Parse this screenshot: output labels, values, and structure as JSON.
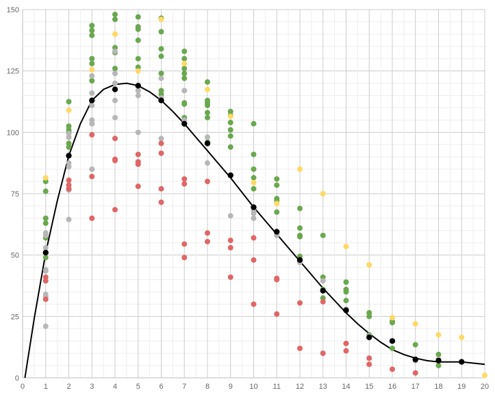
{
  "chart_data": {
    "type": "scatter",
    "title": "",
    "xlabel": "",
    "ylabel": "",
    "xlim": [
      0,
      20
    ],
    "ylim": [
      0,
      150
    ],
    "x_ticks": [
      0,
      1,
      2,
      3,
      4,
      5,
      6,
      7,
      8,
      9,
      10,
      11,
      12,
      13,
      14,
      15,
      16,
      17,
      18,
      19,
      20
    ],
    "y_ticks": [
      0,
      25,
      50,
      75,
      100,
      125,
      150
    ],
    "x_tick_labels": [
      "0",
      "1",
      "2",
      "3",
      "4",
      "5",
      "6",
      "7",
      "8",
      "9",
      "10",
      "11",
      "12",
      "13",
      "14",
      "15",
      "16",
      "17",
      "18",
      "19",
      "20"
    ],
    "y_tick_labels": [
      "0",
      "25",
      "50",
      "75",
      "100",
      "125",
      "150"
    ],
    "grid": true,
    "legend": "none",
    "series": [
      {
        "color": "#6aa84f",
        "points": [
          [
            1,
            80
          ],
          [
            1,
            76
          ],
          [
            1,
            65
          ],
          [
            1,
            63
          ],
          [
            1,
            57
          ],
          [
            1,
            49
          ],
          [
            2,
            112.5
          ],
          [
            2,
            102.5
          ],
          [
            2,
            101
          ],
          [
            2,
            100
          ],
          [
            2,
            95.5
          ],
          [
            2,
            94
          ],
          [
            3,
            143.5
          ],
          [
            3,
            141.5
          ],
          [
            3,
            139.5
          ],
          [
            3,
            130
          ],
          [
            3,
            128
          ],
          [
            3,
            121
          ],
          [
            4,
            148
          ],
          [
            4,
            146
          ],
          [
            4,
            134.5
          ],
          [
            4,
            132.5
          ],
          [
            4,
            126
          ],
          [
            5,
            147
          ],
          [
            5,
            143
          ],
          [
            5,
            142
          ],
          [
            5,
            137.5
          ],
          [
            5,
            130
          ],
          [
            5,
            126.5
          ],
          [
            6,
            146.5
          ],
          [
            6,
            141
          ],
          [
            6,
            134
          ],
          [
            6,
            131
          ],
          [
            6,
            124
          ],
          [
            6,
            117
          ],
          [
            6,
            115.5
          ],
          [
            7,
            133
          ],
          [
            7,
            130
          ],
          [
            7,
            126
          ],
          [
            7,
            124
          ],
          [
            7,
            122
          ],
          [
            7,
            112
          ],
          [
            7,
            111.5
          ],
          [
            7,
            106
          ],
          [
            8,
            120.5
          ],
          [
            8,
            113
          ],
          [
            8,
            112
          ],
          [
            8,
            111
          ],
          [
            8,
            108
          ],
          [
            8,
            106
          ],
          [
            8,
            96
          ],
          [
            9,
            108.5
          ],
          [
            9,
            107
          ],
          [
            9,
            104
          ],
          [
            9,
            101
          ],
          [
            9,
            98.5
          ],
          [
            9,
            94
          ],
          [
            10,
            103.5
          ],
          [
            10,
            91
          ],
          [
            10,
            85
          ],
          [
            10,
            81.5
          ],
          [
            10,
            77
          ],
          [
            11,
            81
          ],
          [
            11,
            78.5
          ],
          [
            11,
            73
          ],
          [
            11,
            72
          ],
          [
            11,
            67.5
          ],
          [
            12,
            69
          ],
          [
            12,
            61
          ],
          [
            12,
            58
          ],
          [
            12,
            57.5
          ],
          [
            12,
            49.5
          ],
          [
            13,
            58
          ],
          [
            13,
            41
          ],
          [
            13,
            36
          ],
          [
            13,
            32.5
          ],
          [
            14,
            39
          ],
          [
            14,
            36
          ],
          [
            14,
            35
          ],
          [
            14,
            31.5
          ],
          [
            15,
            26.5
          ],
          [
            15,
            25
          ],
          [
            15,
            17.5
          ],
          [
            16,
            23
          ],
          [
            16,
            22.5
          ],
          [
            16,
            12
          ],
          [
            17,
            13.5
          ],
          [
            18,
            9.5
          ],
          [
            18,
            5
          ]
        ]
      },
      {
        "color": "#ffd966",
        "points": [
          [
            1,
            81.5
          ],
          [
            2,
            109
          ],
          [
            3,
            125.5
          ],
          [
            4,
            140
          ],
          [
            5,
            125
          ],
          [
            6,
            146
          ],
          [
            7,
            128
          ],
          [
            8,
            117.5
          ],
          [
            9,
            106.5
          ],
          [
            10,
            79.5
          ],
          [
            11,
            71
          ],
          [
            12,
            85
          ],
          [
            13,
            75
          ],
          [
            14,
            53.5
          ],
          [
            15,
            46
          ],
          [
            16,
            24.5
          ],
          [
            17,
            22
          ],
          [
            18,
            17.5
          ],
          [
            19,
            16.5
          ],
          [
            20,
            1
          ]
        ]
      },
      {
        "color": "#b7b7b7",
        "points": [
          [
            1,
            59
          ],
          [
            1,
            58
          ],
          [
            1,
            53
          ],
          [
            1,
            44
          ],
          [
            1,
            43.5
          ],
          [
            1,
            34
          ],
          [
            1,
            33
          ],
          [
            1,
            21
          ],
          [
            2,
            99.5
          ],
          [
            2,
            98
          ],
          [
            2,
            87.5
          ],
          [
            2,
            86
          ],
          [
            2,
            77
          ],
          [
            2,
            76.5
          ],
          [
            2,
            64.5
          ],
          [
            3,
            123
          ],
          [
            3,
            116
          ],
          [
            3,
            111
          ],
          [
            3,
            105
          ],
          [
            3,
            103.5
          ],
          [
            3,
            85
          ],
          [
            4,
            133
          ],
          [
            4,
            124
          ],
          [
            4,
            120
          ],
          [
            4,
            113
          ],
          [
            4,
            106
          ],
          [
            5,
            117
          ],
          [
            5,
            115
          ],
          [
            5,
            100
          ],
          [
            6,
            122
          ],
          [
            6,
            114
          ],
          [
            6,
            97.5
          ],
          [
            7,
            117
          ],
          [
            7,
            105
          ],
          [
            8,
            98
          ],
          [
            8,
            87.5
          ],
          [
            9,
            66
          ],
          [
            10,
            68
          ],
          [
            10,
            67
          ],
          [
            10,
            65
          ],
          [
            11,
            58
          ],
          [
            12,
            47
          ],
          [
            13,
            39.5
          ],
          [
            14,
            28
          ],
          [
            15,
            17
          ],
          [
            16,
            15
          ],
          [
            17,
            7
          ],
          [
            18,
            7.5
          ]
        ]
      },
      {
        "color": "#e06666",
        "points": [
          [
            1,
            41
          ],
          [
            1,
            39.5
          ],
          [
            1,
            32
          ],
          [
            2,
            80.5
          ],
          [
            2,
            78.5
          ],
          [
            2,
            77
          ],
          [
            3,
            99
          ],
          [
            3,
            82
          ],
          [
            3,
            65
          ],
          [
            4,
            97.5
          ],
          [
            4,
            89
          ],
          [
            4,
            88.5
          ],
          [
            4,
            68.5
          ],
          [
            5,
            91
          ],
          [
            5,
            88
          ],
          [
            5,
            87
          ],
          [
            5,
            78
          ],
          [
            6,
            95.5
          ],
          [
            6,
            91.5
          ],
          [
            6,
            77
          ],
          [
            6,
            71.5
          ],
          [
            7,
            81
          ],
          [
            7,
            79
          ],
          [
            7,
            54.5
          ],
          [
            7,
            49
          ],
          [
            8,
            59
          ],
          [
            8,
            55.5
          ],
          [
            8,
            80
          ],
          [
            9,
            56
          ],
          [
            9,
            53
          ],
          [
            9,
            41
          ],
          [
            10,
            57
          ],
          [
            10,
            48
          ],
          [
            10,
            30
          ],
          [
            11,
            40.5
          ],
          [
            11,
            40
          ],
          [
            11,
            26
          ],
          [
            12,
            30.5
          ],
          [
            12,
            12
          ],
          [
            13,
            31
          ],
          [
            13,
            10
          ],
          [
            14,
            14
          ],
          [
            14,
            11
          ],
          [
            15,
            8
          ],
          [
            15,
            5.5
          ],
          [
            16,
            3.5
          ],
          [
            17,
            2
          ]
        ]
      },
      {
        "color": "#000000",
        "points": [
          [
            1,
            51
          ],
          [
            2,
            90.5
          ],
          [
            3,
            113
          ],
          [
            4,
            117.5
          ],
          [
            5,
            119
          ],
          [
            6,
            113
          ],
          [
            7,
            103.5
          ],
          [
            8,
            95.5
          ],
          [
            9,
            82.5
          ],
          [
            10,
            69.5
          ],
          [
            11,
            59.5
          ],
          [
            12,
            48
          ],
          [
            13,
            35.5
          ],
          [
            14,
            27.5
          ],
          [
            15,
            16.5
          ],
          [
            16,
            15
          ],
          [
            17,
            7.5
          ],
          [
            18,
            7
          ],
          [
            19,
            6.5
          ]
        ]
      }
    ],
    "trend_line": {
      "color": "#000000",
      "points": [
        [
          0.1,
          0
        ],
        [
          0.5,
          24
        ],
        [
          1,
          51
        ],
        [
          1.5,
          72
        ],
        [
          2,
          90.5
        ],
        [
          2.5,
          103.5
        ],
        [
          3,
          113
        ],
        [
          3.5,
          117.5
        ],
        [
          4,
          119.5
        ],
        [
          4.5,
          120
        ],
        [
          5,
          119
        ],
        [
          5.5,
          116.5
        ],
        [
          6,
          113
        ],
        [
          6.5,
          108.5
        ],
        [
          7,
          103.5
        ],
        [
          7.5,
          98
        ],
        [
          8,
          92.5
        ],
        [
          8.5,
          87
        ],
        [
          9,
          81.5
        ],
        [
          9.5,
          75.5
        ],
        [
          10,
          69.5
        ],
        [
          10.5,
          64
        ],
        [
          11,
          58.5
        ],
        [
          11.5,
          53
        ],
        [
          12,
          47.5
        ],
        [
          12.5,
          42
        ],
        [
          13,
          36.5
        ],
        [
          13.5,
          31.5
        ],
        [
          14,
          26.5
        ],
        [
          14.5,
          22
        ],
        [
          15,
          18
        ],
        [
          15.5,
          14.5
        ],
        [
          16,
          11.5
        ],
        [
          16.5,
          9.5
        ],
        [
          17,
          8
        ],
        [
          17.5,
          7
        ],
        [
          18,
          6.5
        ],
        [
          18.5,
          6.5
        ],
        [
          19,
          6.5
        ],
        [
          19.5,
          6
        ],
        [
          20,
          5.5
        ]
      ]
    }
  }
}
